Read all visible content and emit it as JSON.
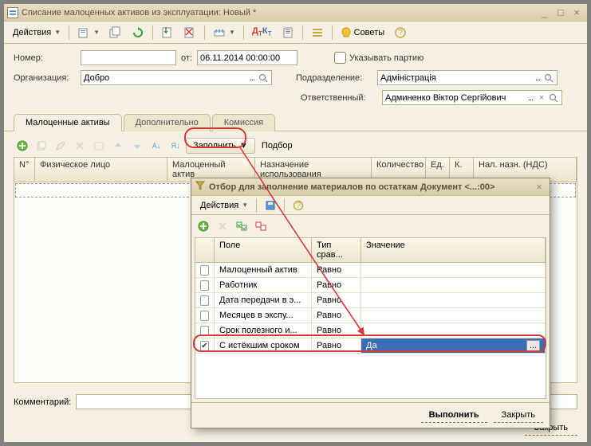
{
  "window": {
    "title": "Списание малоценных активов из эксплуатации: Новый *"
  },
  "toolbar": {
    "actions_label": "Действия",
    "tips_label": "Советы"
  },
  "form": {
    "number_label": "Номер:",
    "number_value": "",
    "date_label": "от:",
    "date_value": "06.11.2014 00:00:00",
    "org_label": "Организация:",
    "org_value": "Добро",
    "show_batch_label": "Указывать партию",
    "subdivision_label": "Подразделение:",
    "subdivision_value": "Адміністрація",
    "responsible_label": "Ответственный:",
    "responsible_value": "Админенко Віктор Сергійович",
    "comment_label": "Комментарий:",
    "comment_value": ""
  },
  "tabs": {
    "t1": "Малоценные активы",
    "t2": "Дополнительно",
    "t3": "Комиссия"
  },
  "grid_toolbar": {
    "fill_label": "Заполнить",
    "select_label": "Подбор"
  },
  "grid_columns": {
    "c1": "N°",
    "c2": "Физическое лицо",
    "c3": "Малоценный актив",
    "c4": "Назначение использования",
    "c5": "Количество",
    "c6": "Ед.",
    "c7": "К.",
    "c8": "Нал. назн. (НДС)"
  },
  "dialog": {
    "title": "Отбор для заполнение материалов по остаткам Документ <...:00>",
    "actions_label": "Действия",
    "cols": {
      "field": "Поле",
      "cmp": "Тип срав...",
      "val": "Значение"
    },
    "rows": [
      {
        "checked": false,
        "field": "Малоценный актив",
        "cmp": "Равно",
        "val": ""
      },
      {
        "checked": false,
        "field": "Работник",
        "cmp": "Равно",
        "val": ""
      },
      {
        "checked": false,
        "field": "Дата передачи в э...",
        "cmp": "Равно",
        "val": ""
      },
      {
        "checked": false,
        "field": "Месяцев в экспу...",
        "cmp": "Равно",
        "val": ""
      },
      {
        "checked": false,
        "field": "Срок полезного и...",
        "cmp": "Равно",
        "val": ""
      },
      {
        "checked": true,
        "field": "С истёкшим сроком",
        "cmp": "Равно",
        "val": "Да",
        "selected": true
      }
    ],
    "execute_label": "Выполнить",
    "close_label": "Закрыть"
  },
  "footer": {
    "close_label": "Закрыть"
  },
  "colors": {
    "accent_red": "#d43a3a",
    "select_blue": "#3a6db5"
  }
}
